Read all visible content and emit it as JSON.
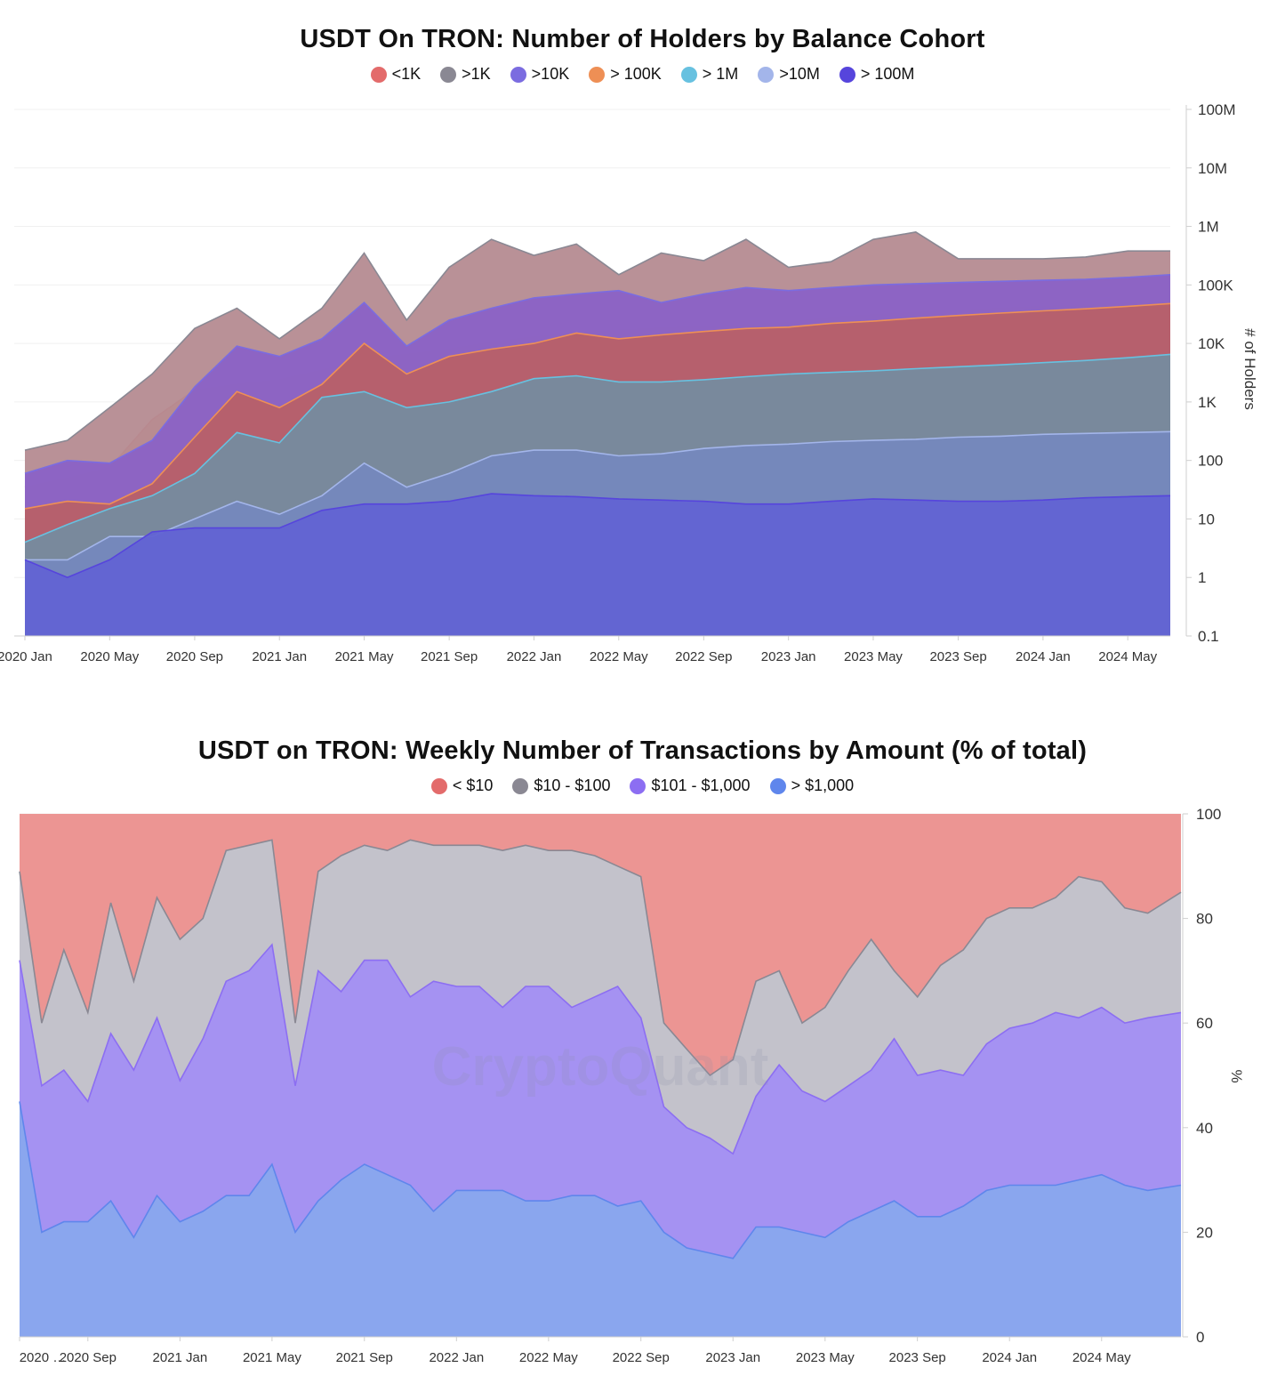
{
  "chart_data": [
    {
      "type": "area",
      "scale": "log",
      "title": "USDT On TRON: Number of Holders by Balance Cohort",
      "ylabel": "# of Holders",
      "watermark": "CryptoQuant",
      "ylim": [
        0.1,
        100000000
      ],
      "y_ticks": [
        {
          "value": 100000000,
          "label": "100M"
        },
        {
          "value": 10000000,
          "label": "10M"
        },
        {
          "value": 1000000,
          "label": "1M"
        },
        {
          "value": 100000,
          "label": "100K"
        },
        {
          "value": 10000,
          "label": "10K"
        },
        {
          "value": 1000,
          "label": "1K"
        },
        {
          "value": 100,
          "label": "100"
        },
        {
          "value": 10,
          "label": "10"
        },
        {
          "value": 1,
          "label": "1"
        },
        {
          "value": 0.1,
          "label": "0.1"
        }
      ],
      "x_range": [
        2020.0,
        2024.5
      ],
      "x_ticks": [
        {
          "value": 2020.0,
          "label": "2020 Jan"
        },
        {
          "value": 2020.333,
          "label": "2020 May"
        },
        {
          "value": 2020.667,
          "label": "2020 Sep"
        },
        {
          "value": 2021.0,
          "label": "2021 Jan"
        },
        {
          "value": 2021.333,
          "label": "2021 May"
        },
        {
          "value": 2021.667,
          "label": "2021 Sep"
        },
        {
          "value": 2022.0,
          "label": "2022 Jan"
        },
        {
          "value": 2022.333,
          "label": "2022 May"
        },
        {
          "value": 2022.667,
          "label": "2022 Sep"
        },
        {
          "value": 2023.0,
          "label": "2023 Jan"
        },
        {
          "value": 2023.333,
          "label": "2023 May"
        },
        {
          "value": 2023.667,
          "label": "2023 Sep"
        },
        {
          "value": 2024.0,
          "label": "2024 Jan"
        },
        {
          "value": 2024.333,
          "label": "2024 May"
        }
      ],
      "x": [
        2020.0,
        2020.167,
        2020.333,
        2020.5,
        2020.667,
        2020.833,
        2021.0,
        2021.167,
        2021.333,
        2021.5,
        2021.667,
        2021.833,
        2022.0,
        2022.167,
        2022.333,
        2022.5,
        2022.667,
        2022.833,
        2023.0,
        2023.167,
        2023.333,
        2023.5,
        2023.667,
        2023.833,
        2024.0,
        2024.167,
        2024.333,
        2024.5
      ],
      "series": [
        {
          "name": "<1K",
          "color": "#e36b6b",
          "fill": "#ec9592",
          "values": [
            35,
            50,
            75,
            500,
            1600,
            2000,
            2400,
            3500,
            5500,
            6500,
            8000,
            10500,
            13000,
            15000,
            17000,
            18500,
            19500,
            21000,
            23000,
            28000,
            31000,
            34000,
            37000,
            40000,
            43000,
            46000,
            49000,
            52000
          ]
        },
        {
          "name": ">1K",
          "color": "#8a8893",
          "fill": "#b58b91",
          "values": [
            150,
            220,
            800,
            3000,
            18000,
            40000,
            12000,
            40000,
            350000,
            25000,
            200000,
            600000,
            320000,
            500000,
            150000,
            350000,
            260000,
            600000,
            200000,
            250000,
            600000,
            800000,
            280000,
            280000,
            280000,
            300000,
            380000,
            380000
          ]
        },
        {
          "name": ">10K",
          "color": "#7b6ce0",
          "fill": "#8a62c6",
          "values": [
            60,
            100,
            90,
            220,
            1800,
            9000,
            6000,
            12000,
            50000,
            9000,
            25000,
            40000,
            60000,
            70000,
            80000,
            50000,
            70000,
            90000,
            80000,
            90000,
            100000,
            105000,
            110000,
            115000,
            120000,
            125000,
            135000,
            150000
          ]
        },
        {
          "name": "> 100K",
          "color": "#ee8f55",
          "fill": "#b86068",
          "values": [
            15,
            20,
            18,
            40,
            250,
            1500,
            800,
            2000,
            10000,
            3000,
            6000,
            8000,
            10000,
            15000,
            12000,
            14000,
            16000,
            18000,
            19000,
            22000,
            24000,
            27000,
            30000,
            33000,
            36000,
            39000,
            43000,
            48000
          ]
        },
        {
          "name": "> 1M",
          "color": "#67c1e0",
          "fill": "#768b9f",
          "values": [
            4,
            8,
            15,
            25,
            60,
            300,
            200,
            1200,
            1500,
            800,
            1000,
            1500,
            2500,
            2800,
            2200,
            2200,
            2400,
            2700,
            3000,
            3200,
            3400,
            3700,
            4000,
            4300,
            4700,
            5100,
            5700,
            6500
          ]
        },
        {
          "name": ">10M",
          "color": "#a3b5ea",
          "fill": "#7588bd",
          "values": [
            2,
            2,
            5,
            5,
            10,
            20,
            12,
            25,
            90,
            35,
            60,
            120,
            150,
            150,
            120,
            130,
            160,
            180,
            190,
            210,
            220,
            230,
            250,
            260,
            280,
            290,
            300,
            310
          ]
        },
        {
          "name": "> 100M",
          "color": "#5645dc",
          "fill": "#6263d3",
          "values": [
            2,
            1,
            2,
            6,
            7,
            7,
            7,
            14,
            18,
            18,
            20,
            27,
            25,
            24,
            22,
            21,
            20,
            18,
            18,
            20,
            22,
            21,
            20,
            20,
            21,
            23,
            24,
            25
          ]
        }
      ]
    },
    {
      "type": "area",
      "stacked": true,
      "title": "USDT on TRON: Weekly Number of Transactions by Amount (% of total)",
      "ylabel": "%",
      "watermark": "CryptoQuant",
      "ylim": [
        0,
        100
      ],
      "y_ticks": [
        {
          "value": 100,
          "label": "100"
        },
        {
          "value": 80,
          "label": "80"
        },
        {
          "value": 60,
          "label": "60"
        },
        {
          "value": 40,
          "label": "40"
        },
        {
          "value": 20,
          "label": "20"
        },
        {
          "value": 0,
          "label": "0"
        }
      ],
      "x_range": [
        2020.42,
        2024.62
      ],
      "x_ticks": [
        {
          "value": 2020.42,
          "label": "2020 …"
        },
        {
          "value": 2020.667,
          "label": "2020 Sep"
        },
        {
          "value": 2021.0,
          "label": "2021 Jan"
        },
        {
          "value": 2021.333,
          "label": "2021 May"
        },
        {
          "value": 2021.667,
          "label": "2021 Sep"
        },
        {
          "value": 2022.0,
          "label": "2022 Jan"
        },
        {
          "value": 2022.333,
          "label": "2022 May"
        },
        {
          "value": 2022.667,
          "label": "2022 Sep"
        },
        {
          "value": 2023.0,
          "label": "2023 Jan"
        },
        {
          "value": 2023.333,
          "label": "2023 May"
        },
        {
          "value": 2023.667,
          "label": "2023 Sep"
        },
        {
          "value": 2024.0,
          "label": "2024 Jan"
        },
        {
          "value": 2024.333,
          "label": "2024 May"
        }
      ],
      "x": [
        2020.42,
        2020.5,
        2020.58,
        2020.667,
        2020.75,
        2020.833,
        2020.917,
        2021.0,
        2021.083,
        2021.167,
        2021.25,
        2021.333,
        2021.417,
        2021.5,
        2021.583,
        2021.667,
        2021.75,
        2021.833,
        2021.917,
        2022.0,
        2022.083,
        2022.167,
        2022.25,
        2022.333,
        2022.417,
        2022.5,
        2022.583,
        2022.667,
        2022.75,
        2022.833,
        2022.917,
        2023.0,
        2023.083,
        2023.167,
        2023.25,
        2023.333,
        2023.417,
        2023.5,
        2023.583,
        2023.667,
        2023.75,
        2023.833,
        2023.917,
        2024.0,
        2024.083,
        2024.167,
        2024.25,
        2024.333,
        2024.417,
        2024.5,
        2024.62
      ],
      "boundaries": {
        "top_gray": [
          89,
          60,
          74,
          62,
          83,
          68,
          84,
          76,
          80,
          93,
          94,
          95,
          60,
          89,
          92,
          94,
          93,
          95,
          94,
          94,
          94,
          93,
          94,
          93,
          93,
          92,
          90,
          88,
          60,
          55,
          50,
          53,
          68,
          70,
          60,
          63,
          70,
          76,
          70,
          65,
          71,
          74,
          80,
          82,
          82,
          84,
          88,
          87,
          82,
          81,
          85
        ],
        "top_purple": [
          72,
          48,
          51,
          45,
          58,
          51,
          61,
          49,
          57,
          68,
          70,
          75,
          48,
          70,
          66,
          72,
          72,
          65,
          68,
          67,
          67,
          63,
          67,
          67,
          63,
          65,
          67,
          61,
          44,
          40,
          38,
          35,
          46,
          52,
          47,
          45,
          48,
          51,
          57,
          50,
          51,
          50,
          56,
          59,
          60,
          62,
          61,
          63,
          60,
          61,
          62
        ],
        "top_blue": [
          45,
          20,
          22,
          22,
          26,
          19,
          27,
          22,
          24,
          27,
          27,
          33,
          20,
          26,
          30,
          33,
          31,
          29,
          24,
          28,
          28,
          28,
          26,
          26,
          27,
          27,
          25,
          26,
          20,
          17,
          16,
          15,
          21,
          21,
          20,
          19,
          22,
          24,
          26,
          23,
          23,
          25,
          28,
          29,
          29,
          29,
          30,
          31,
          29,
          28,
          29
        ]
      },
      "series": [
        {
          "name": "< $10",
          "color": "#e36b6b",
          "fill": "#ec9593"
        },
        {
          "name": "$10 - $100",
          "color": "#8a8893",
          "fill": "#c3c2cb"
        },
        {
          "name": "$101 - $1,000",
          "color": "#8c6ef2",
          "fill": "#a592f2"
        },
        {
          "name": "> $1,000",
          "color": "#5f86ec",
          "fill": "#8aa6ee"
        }
      ]
    }
  ]
}
